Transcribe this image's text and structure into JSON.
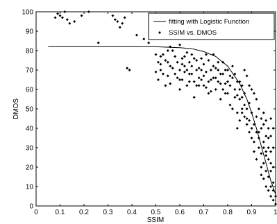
{
  "chart_data": {
    "type": "scatter",
    "title": "",
    "xlabel": "SSIM",
    "ylabel": "DMOS",
    "xlim": [
      0,
      1
    ],
    "ylim": [
      0,
      100
    ],
    "xticks": [
      "0",
      "0.1",
      "0.2",
      "0.3",
      "0.4",
      "0.5",
      "0.6",
      "0.7",
      "0.8",
      "0.9",
      "1"
    ],
    "yticks": [
      "0",
      "10",
      "20",
      "30",
      "40",
      "50",
      "60",
      "70",
      "80",
      "90",
      "100"
    ],
    "grid": false,
    "legend_position": "top-right",
    "legend": [
      {
        "label": "fitting with Logistic Function",
        "style": "line"
      },
      {
        "label": "SSIM vs. DMOS",
        "style": "marker"
      }
    ],
    "fit_curve": {
      "name": "fitting with Logistic Function",
      "x": [
        0.05,
        0.3,
        0.5,
        0.6,
        0.65,
        0.7,
        0.75,
        0.8,
        0.85,
        0.88,
        0.9,
        0.92,
        0.94,
        0.96,
        0.98,
        1.0
      ],
      "y": [
        82,
        82,
        82,
        81.5,
        81,
        79.5,
        77,
        72,
        63,
        55,
        48,
        40,
        31,
        22,
        13,
        6
      ]
    },
    "scatter": {
      "name": "SSIM vs. DMOS",
      "points": [
        [
          0.08,
          97
        ],
        [
          0.09,
          99
        ],
        [
          0.1,
          98
        ],
        [
          0.11,
          97
        ],
        [
          0.12,
          100
        ],
        [
          0.13,
          96
        ],
        [
          0.14,
          94
        ],
        [
          0.16,
          95
        ],
        [
          0.19,
          98
        ],
        [
          0.22,
          100
        ],
        [
          0.26,
          84
        ],
        [
          0.32,
          98
        ],
        [
          0.33,
          96
        ],
        [
          0.34,
          95
        ],
        [
          0.35,
          92
        ],
        [
          0.36,
          94
        ],
        [
          0.37,
          97
        ],
        [
          0.38,
          71
        ],
        [
          0.39,
          70
        ],
        [
          0.42,
          88
        ],
        [
          0.45,
          86
        ],
        [
          0.47,
          84
        ],
        [
          0.5,
          78
        ],
        [
          0.51,
          74
        ],
        [
          0.52,
          70
        ],
        [
          0.53,
          68
        ],
        [
          0.54,
          75
        ],
        [
          0.55,
          80
        ],
        [
          0.56,
          63
        ],
        [
          0.57,
          71
        ],
        [
          0.58,
          77
        ],
        [
          0.59,
          66
        ],
        [
          0.6,
          83
        ],
        [
          0.6,
          60
        ],
        [
          0.61,
          73
        ],
        [
          0.62,
          69
        ],
        [
          0.63,
          79
        ],
        [
          0.64,
          64
        ],
        [
          0.65,
          72
        ],
        [
          0.66,
          56
        ],
        [
          0.67,
          75
        ],
        [
          0.68,
          62
        ],
        [
          0.69,
          70
        ],
        [
          0.7,
          67
        ],
        [
          0.71,
          78
        ],
        [
          0.72,
          58
        ],
        [
          0.73,
          65
        ],
        [
          0.74,
          72
        ],
        [
          0.75,
          60
        ],
        [
          0.76,
          74
        ],
        [
          0.77,
          55
        ],
        [
          0.78,
          68
        ],
        [
          0.79,
          63
        ],
        [
          0.8,
          70
        ],
        [
          0.81,
          52
        ],
        [
          0.82,
          66
        ],
        [
          0.83,
          60
        ],
        [
          0.84,
          57
        ],
        [
          0.85,
          64
        ],
        [
          0.86,
          50
        ],
        [
          0.87,
          58
        ],
        [
          0.88,
          45
        ],
        [
          0.89,
          53
        ],
        [
          0.9,
          48
        ],
        [
          0.91,
          42
        ],
        [
          0.92,
          46
        ],
        [
          0.93,
          38
        ],
        [
          0.94,
          40
        ],
        [
          0.95,
          33
        ],
        [
          0.96,
          28
        ],
        [
          0.97,
          24
        ],
        [
          0.98,
          18
        ],
        [
          0.99,
          12
        ],
        [
          1.0,
          5
        ],
        [
          0.99,
          8
        ],
        [
          0.98,
          22
        ],
        [
          0.97,
          30
        ],
        [
          0.96,
          36
        ],
        [
          0.95,
          42
        ],
        [
          0.94,
          45
        ],
        [
          0.93,
          50
        ],
        [
          0.92,
          55
        ],
        [
          0.91,
          58
        ],
        [
          0.9,
          60
        ],
        [
          0.89,
          62
        ],
        [
          0.88,
          67
        ],
        [
          0.87,
          70
        ],
        [
          0.86,
          62
        ],
        [
          0.85,
          55
        ],
        [
          0.84,
          48
        ],
        [
          0.83,
          56
        ],
        [
          0.82,
          50
        ],
        [
          0.81,
          62
        ],
        [
          0.8,
          58
        ],
        [
          0.79,
          70
        ],
        [
          0.78,
          74
        ],
        [
          0.77,
          68
        ],
        [
          0.76,
          64
        ],
        [
          0.75,
          71
        ],
        [
          0.74,
          66
        ],
        [
          0.73,
          59
        ],
        [
          0.72,
          75
        ],
        [
          0.71,
          61
        ],
        [
          0.7,
          73
        ],
        [
          0.69,
          65
        ],
        [
          0.68,
          71
        ],
        [
          0.67,
          62
        ],
        [
          0.66,
          76
        ],
        [
          0.65,
          68
        ],
        [
          0.64,
          74
        ],
        [
          0.63,
          70
        ],
        [
          0.62,
          77
        ],
        [
          0.61,
          65
        ],
        [
          0.6,
          70
        ],
        [
          0.59,
          74
        ],
        [
          0.58,
          68
        ],
        [
          0.57,
          80
        ],
        [
          0.56,
          72
        ],
        [
          0.55,
          67
        ],
        [
          0.54,
          62
        ],
        [
          0.53,
          78
        ],
        [
          0.52,
          73
        ],
        [
          0.51,
          65
        ],
        [
          0.93,
          30
        ],
        [
          0.94,
          27
        ],
        [
          0.95,
          22
        ],
        [
          0.96,
          18
        ],
        [
          0.97,
          15
        ],
        [
          0.98,
          10
        ],
        [
          0.99,
          3
        ],
        [
          1.0,
          1
        ],
        [
          0.95,
          14
        ],
        [
          0.94,
          20
        ],
        [
          0.93,
          35
        ],
        [
          0.92,
          38
        ],
        [
          0.91,
          33
        ],
        [
          0.9,
          40
        ],
        [
          0.89,
          44
        ],
        [
          0.88,
          50
        ],
        [
          0.87,
          52
        ],
        [
          0.86,
          48
        ],
        [
          0.85,
          44
        ],
        [
          0.84,
          40
        ],
        [
          0.95,
          48
        ],
        [
          0.96,
          44
        ],
        [
          0.97,
          40
        ],
        [
          0.98,
          36
        ],
        [
          0.99,
          30
        ],
        [
          0.97,
          35
        ],
        [
          0.98,
          28
        ],
        [
          0.99,
          20
        ],
        [
          0.96,
          26
        ],
        [
          0.95,
          30
        ],
        [
          0.99,
          40
        ],
        [
          0.98,
          45
        ],
        [
          0.97,
          8
        ],
        [
          0.98,
          5
        ],
        [
          0.96,
          10
        ],
        [
          0.94,
          16
        ],
        [
          0.92,
          24
        ],
        [
          0.91,
          28
        ],
        [
          0.9,
          35
        ],
        [
          0.89,
          38
        ],
        [
          0.88,
          42
        ],
        [
          0.87,
          46
        ],
        [
          0.86,
          56
        ],
        [
          0.85,
          60
        ],
        [
          0.84,
          64
        ],
        [
          0.83,
          68
        ],
        [
          0.82,
          72
        ],
        [
          0.81,
          67
        ],
        [
          0.8,
          64
        ],
        [
          0.79,
          58
        ],
        [
          0.78,
          60
        ],
        [
          0.77,
          63
        ],
        [
          0.76,
          70
        ],
        [
          0.75,
          66
        ],
        [
          0.74,
          78
        ],
        [
          0.73,
          70
        ],
        [
          0.72,
          64
        ],
        [
          0.71,
          69
        ],
        [
          0.7,
          62
        ],
        [
          0.69,
          76
        ],
        [
          0.68,
          66
        ],
        [
          0.67,
          70
        ],
        [
          0.66,
          64
        ],
        [
          0.65,
          78
        ],
        [
          0.64,
          68
        ],
        [
          0.63,
          62
        ],
        [
          0.62,
          72
        ],
        [
          0.61,
          76
        ],
        [
          0.6,
          65
        ],
        [
          0.55,
          74
        ],
        [
          0.5,
          69
        ],
        [
          0.52,
          77
        ],
        [
          0.56,
          82
        ]
      ]
    }
  }
}
